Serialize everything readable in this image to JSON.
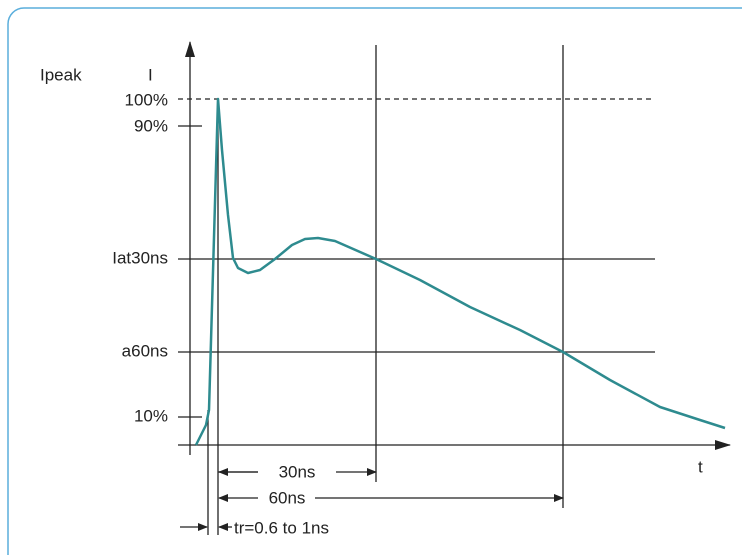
{
  "labels": {
    "y_axis_title": "Ipeak",
    "y_axis_symbol": "I",
    "level_100": "100%",
    "level_90": "90%",
    "level_30ns": "Iat30ns",
    "level_60ns": "a60ns",
    "level_10": "10%",
    "x_axis_symbol": "t",
    "span_30ns": "30ns",
    "span_60ns": "60ns",
    "rise_time": "tr=0.6 to 1ns"
  }
}
